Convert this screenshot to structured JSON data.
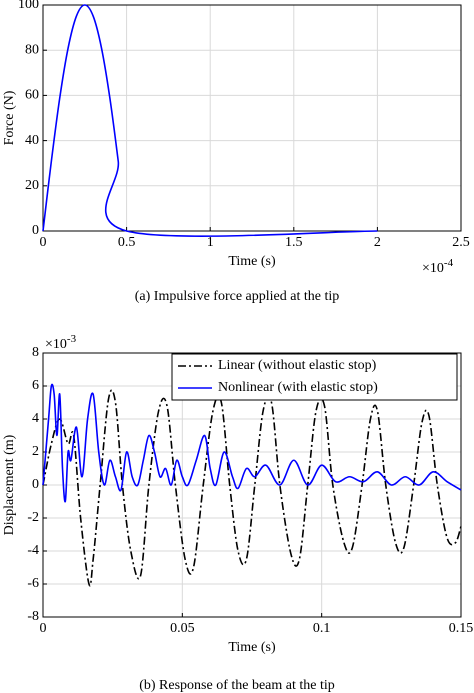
{
  "chart_data": [
    {
      "type": "line",
      "caption": "(a)  Impulsive force applied at the tip",
      "x_label": "Time (s)",
      "y_label": "Force (N)",
      "x_scale_label": "×10",
      "x_scale_exponent": "-4",
      "xlim": [
        0,
        2.5
      ],
      "xticks": [
        0,
        0.5,
        1,
        1.5,
        2,
        2.5
      ],
      "ylim": [
        0,
        100
      ],
      "yticks": [
        0,
        20,
        40,
        60,
        80,
        100
      ],
      "grid": true,
      "series": [
        {
          "color": "#0000ff",
          "linestyle": "solid",
          "x": [
            0,
            0.05,
            0.1,
            0.15,
            0.2,
            0.25,
            0.3,
            0.35,
            0.4,
            0.45,
            0.5,
            2.0
          ],
          "values": [
            0,
            30.9,
            58.8,
            80.9,
            95.1,
            100,
            95.1,
            80.9,
            58.8,
            30.9,
            0,
            0
          ]
        }
      ]
    },
    {
      "type": "line",
      "caption": "(b)  Response of the beam at the tip",
      "x_label": "Time (s)",
      "y_label": "Displacement (m)",
      "y_scale_label": "×10",
      "y_scale_exponent": "-3",
      "xlim": [
        0,
        0.15
      ],
      "xticks": [
        0,
        0.05,
        0.1,
        0.15
      ],
      "ylim": [
        -8,
        8
      ],
      "yticks": [
        -8,
        -6,
        -4,
        -2,
        0,
        2,
        4,
        6,
        8
      ],
      "grid": true,
      "legend": "upper right",
      "series": [
        {
          "name": "Linear (without elastic stop)",
          "color": "#000000",
          "linestyle": "dash-dot",
          "x": [
            0,
            0.003,
            0.006,
            0.009,
            0.011,
            0.0135,
            0.0165,
            0.018,
            0.0205,
            0.0235,
            0.026,
            0.0285,
            0.0315,
            0.035,
            0.038,
            0.0415,
            0.0445,
            0.0475,
            0.051,
            0.054,
            0.0575,
            0.061,
            0.064,
            0.067,
            0.07,
            0.073,
            0.076,
            0.079,
            0.082,
            0.085,
            0.089,
            0.092,
            0.095,
            0.098,
            0.101,
            0.104,
            0.108,
            0.111,
            0.1145,
            0.1175,
            0.12,
            0.123,
            0.1265,
            0.1295,
            0.133,
            0.136,
            0.1385,
            0.1415,
            0.145,
            0.148,
            0.15
          ],
          "values": [
            0,
            2.5,
            4,
            2.5,
            3,
            -2,
            -6,
            -4.5,
            0,
            5.2,
            5,
            0,
            -4,
            -5.5,
            0,
            4.5,
            4.8,
            0,
            -4.5,
            -5,
            0,
            4.5,
            5,
            0,
            -4,
            -4.5,
            0,
            4.5,
            5,
            0,
            -4.2,
            -4.5,
            0,
            4.5,
            4.8,
            0,
            -3.5,
            -3.8,
            0,
            4,
            4.5,
            0,
            -3.5,
            -3.8,
            0,
            3.8,
            4.2,
            0,
            -3.2,
            -3.5,
            -2.5
          ]
        },
        {
          "name": "Nonlinear (with elastic stop)",
          "color": "#0000ff",
          "linestyle": "solid",
          "x": [
            0,
            0.002,
            0.003,
            0.004,
            0.005,
            0.006,
            0.007,
            0.008,
            0.009,
            0.01,
            0.012,
            0.014,
            0.016,
            0.018,
            0.02,
            0.022,
            0.024,
            0.026,
            0.028,
            0.03,
            0.032,
            0.034,
            0.036,
            0.038,
            0.04,
            0.042,
            0.044,
            0.046,
            0.048,
            0.05,
            0.052,
            0.055,
            0.058,
            0.06,
            0.062,
            0.065,
            0.068,
            0.07,
            0.073,
            0.076,
            0.08,
            0.085,
            0.09,
            0.095,
            0.1,
            0.105,
            0.11,
            0.115,
            0.12,
            0.125,
            0.13,
            0.135,
            0.14,
            0.145,
            0.15
          ],
          "values": [
            0,
            4,
            6,
            5.5,
            3,
            5.5,
            1,
            -1,
            2,
            1.5,
            3.5,
            0.5,
            4,
            5.5,
            2,
            0,
            1.5,
            0.5,
            -0.3,
            2,
            0.5,
            0,
            1.5,
            3,
            2,
            0.5,
            1,
            0,
            1.5,
            0.5,
            0,
            1.5,
            3,
            1,
            0,
            2,
            0.5,
            -0.2,
            1,
            0.5,
            1.2,
            0,
            1.5,
            0,
            1.2,
            0.2,
            0.5,
            0.2,
            0.8,
            0,
            0.5,
            0,
            0.8,
            0.2,
            -0.3
          ]
        }
      ]
    }
  ]
}
